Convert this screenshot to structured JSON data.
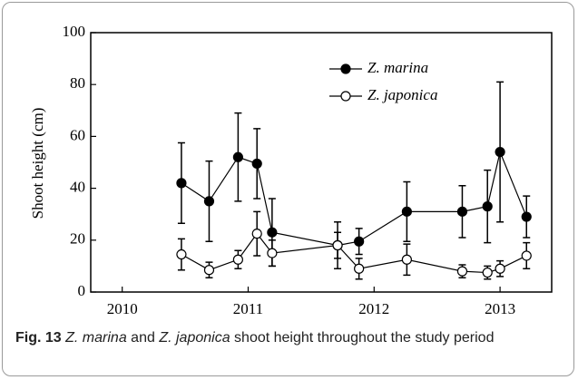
{
  "chart_data": {
    "type": "line",
    "ylabel": "Shoot height (cm)",
    "x": [
      2010.47,
      2010.69,
      2010.92,
      2011.07,
      2011.19,
      2011.71,
      2011.88,
      2012.26,
      2012.7,
      2012.9,
      2013.0,
      2013.21
    ],
    "series": [
      {
        "name": "Z. marina",
        "color": "#000000",
        "marker_fill": "#000000",
        "values": [
          42,
          35,
          52,
          49.5,
          23,
          18,
          19.5,
          31,
          31,
          33,
          54,
          29
        ],
        "errors": [
          15.5,
          15.5,
          17,
          13.5,
          13,
          9,
          5,
          11.5,
          10,
          14,
          27,
          8
        ]
      },
      {
        "name": "Z. japonica",
        "color": "#000000",
        "marker_fill": "#ffffff",
        "values": [
          14.5,
          8.5,
          12.5,
          22.5,
          15,
          18,
          9,
          12.5,
          8,
          7.5,
          9,
          14
        ],
        "errors": [
          6,
          3,
          3.5,
          8.5,
          5,
          5,
          4,
          6,
          2.5,
          2.5,
          3,
          5
        ]
      }
    ],
    "xlim": [
      2009.75,
      2013.41
    ],
    "xticks": [
      2010,
      2011,
      2012,
      2013
    ],
    "ylim": [
      0,
      100
    ],
    "yticks": [
      0,
      20,
      40,
      60,
      80,
      100
    ],
    "legend": "upper right"
  },
  "caption": {
    "label": "Fig. 13",
    "parts": [
      "Z. marina",
      "and",
      "Z. japonica",
      "shoot height throughout the study period"
    ]
  }
}
